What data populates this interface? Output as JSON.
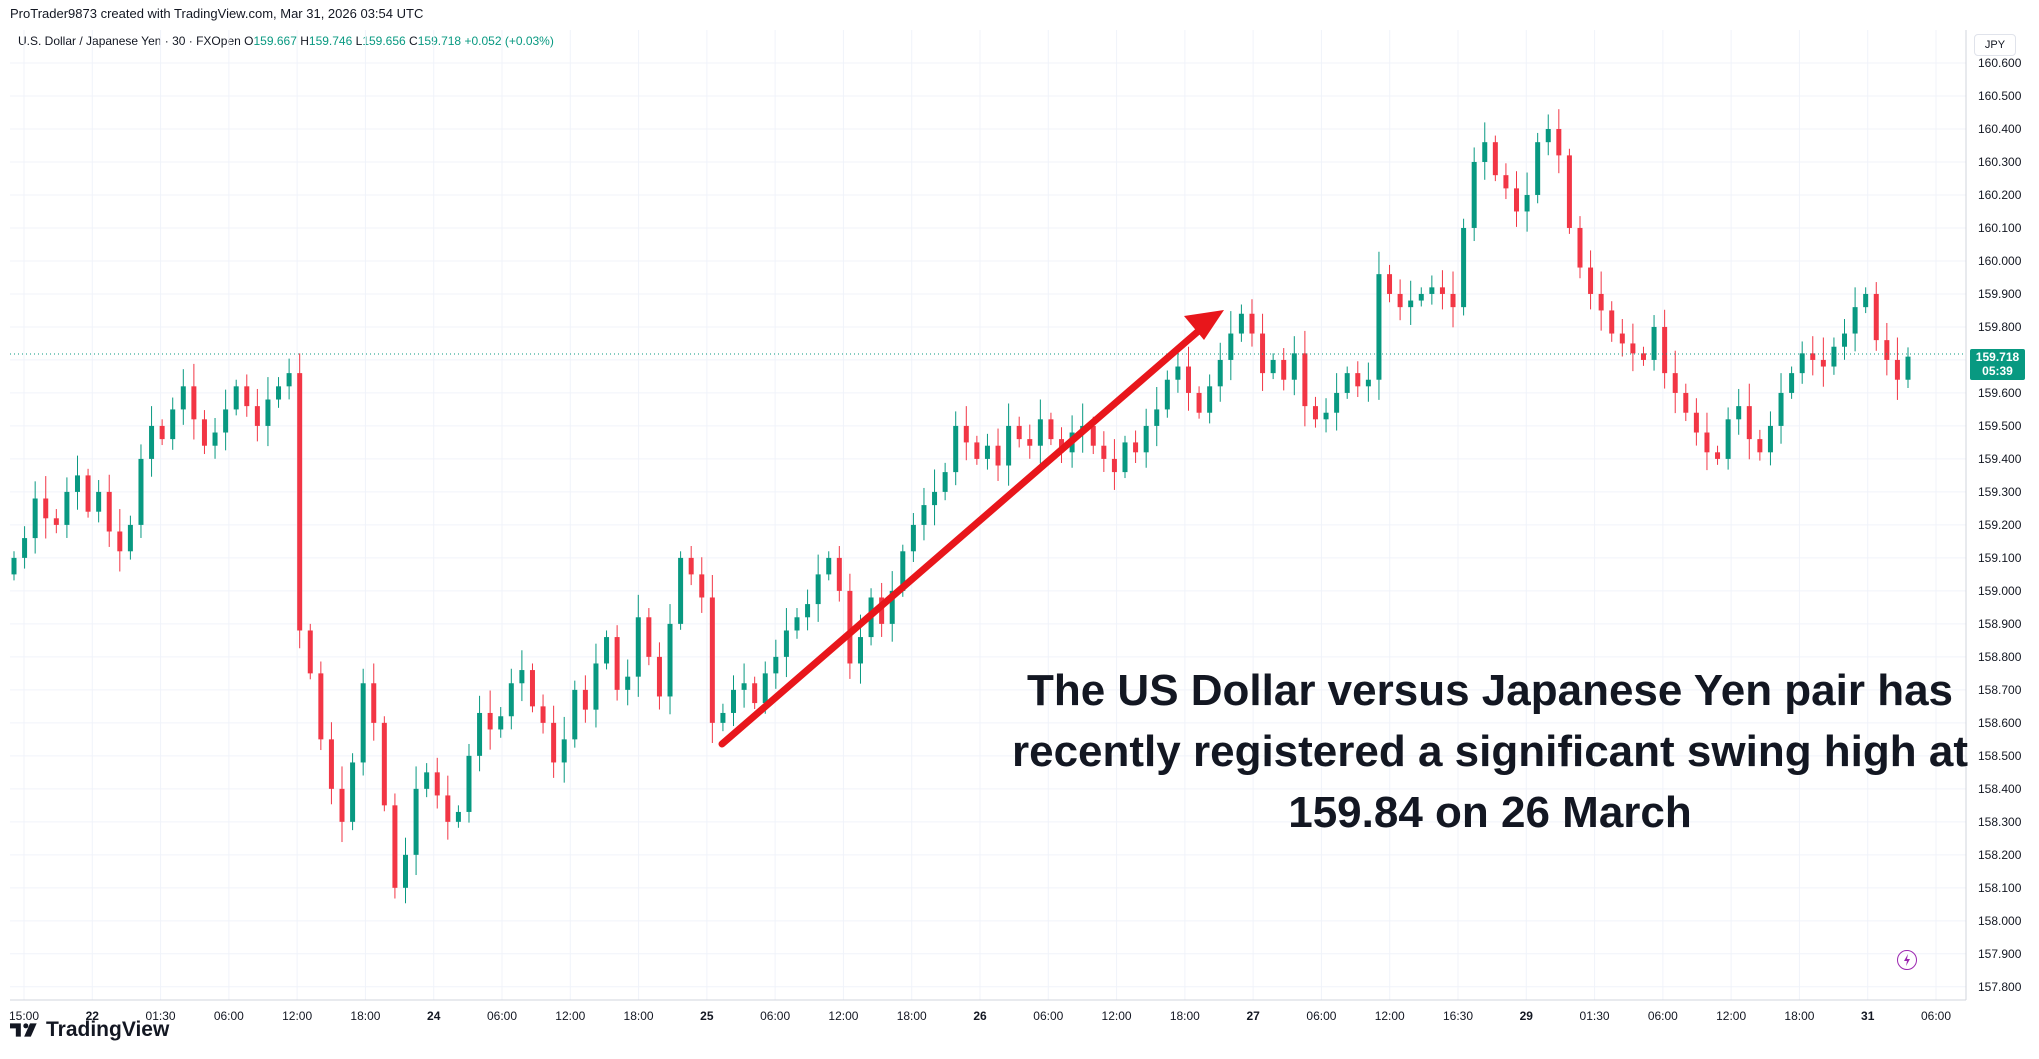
{
  "attribution": "ProTrader9873 created with TradingView.com, Mar 31, 2026 03:54 UTC",
  "legend": {
    "symbol": "U.S. Dollar / Japanese Yen · 30 · FXOpen",
    "o_label": "O",
    "o_value": "159.667",
    "h_label": "H",
    "h_value": "159.746",
    "l_label": "L",
    "l_value": "159.656",
    "c_label": "C",
    "c_value": "159.718",
    "change": "+0.052 (+0.03%)"
  },
  "currency": "JPY",
  "last_price": {
    "price": "159.718",
    "countdown": "05:39"
  },
  "annotation": {
    "line1": "The US Dollar versus Japanese Yen pair has",
    "line2": "recently registered a significant swing high at",
    "line3": "159.84 on 26 March"
  },
  "brand": "TradingView",
  "colors": {
    "up": "#089981",
    "down": "#f23645",
    "arrow": "#e8161b",
    "grid": "#f0f3fa"
  },
  "chart_data": {
    "type": "candlestick",
    "title": "U.S. Dollar / Japanese Yen · 30 · FXOpen",
    "ylabel": "JPY",
    "ylim": [
      157.76,
      160.7
    ],
    "y_ticks": [
      "160.600",
      "160.500",
      "160.400",
      "160.300",
      "160.200",
      "160.100",
      "160.000",
      "159.900",
      "159.800",
      "159.700",
      "159.600",
      "159.500",
      "159.400",
      "159.300",
      "159.200",
      "159.100",
      "159.000",
      "158.900",
      "158.800",
      "158.700",
      "158.600",
      "158.500",
      "158.400",
      "158.300",
      "158.200",
      "158.100",
      "158.000",
      "157.900",
      "157.800"
    ],
    "x_ticks": [
      {
        "label": "15:00",
        "bold": false
      },
      {
        "label": "22",
        "bold": true
      },
      {
        "label": "01:30",
        "bold": false
      },
      {
        "label": "06:00",
        "bold": false
      },
      {
        "label": "12:00",
        "bold": false
      },
      {
        "label": "18:00",
        "bold": false
      },
      {
        "label": "24",
        "bold": true
      },
      {
        "label": "06:00",
        "bold": false
      },
      {
        "label": "12:00",
        "bold": false
      },
      {
        "label": "18:00",
        "bold": false
      },
      {
        "label": "25",
        "bold": true
      },
      {
        "label": "06:00",
        "bold": false
      },
      {
        "label": "12:00",
        "bold": false
      },
      {
        "label": "18:00",
        "bold": false
      },
      {
        "label": "26",
        "bold": true
      },
      {
        "label": "06:00",
        "bold": false
      },
      {
        "label": "12:00",
        "bold": false
      },
      {
        "label": "18:00",
        "bold": false
      },
      {
        "label": "27",
        "bold": true
      },
      {
        "label": "06:00",
        "bold": false
      },
      {
        "label": "12:00",
        "bold": false
      },
      {
        "label": "16:30",
        "bold": false
      },
      {
        "label": "29",
        "bold": true
      },
      {
        "label": "01:30",
        "bold": false
      },
      {
        "label": "06:00",
        "bold": false
      },
      {
        "label": "12:00",
        "bold": false
      },
      {
        "label": "18:00",
        "bold": false
      },
      {
        "label": "31",
        "bold": true
      },
      {
        "label": "06:00",
        "bold": false
      }
    ],
    "last_price": 159.718,
    "swing_high": 159.84,
    "closes": [
      159.1,
      159.16,
      159.28,
      159.22,
      159.2,
      159.3,
      159.35,
      159.24,
      159.3,
      159.18,
      159.12,
      159.2,
      159.4,
      159.5,
      159.46,
      159.55,
      159.62,
      159.52,
      159.44,
      159.48,
      159.55,
      159.62,
      159.56,
      159.5,
      159.58,
      159.62,
      159.66,
      158.88,
      158.75,
      158.55,
      158.4,
      158.3,
      158.48,
      158.72,
      158.6,
      158.35,
      158.1,
      158.2,
      158.4,
      158.45,
      158.38,
      158.3,
      158.33,
      158.5,
      158.63,
      158.58,
      158.62,
      158.72,
      158.76,
      158.65,
      158.6,
      158.48,
      158.55,
      158.7,
      158.64,
      158.78,
      158.86,
      158.7,
      158.74,
      158.92,
      158.8,
      158.68,
      158.9,
      159.1,
      159.05,
      158.98,
      158.6,
      158.63,
      158.7,
      158.72,
      158.66,
      158.75,
      158.8,
      158.88,
      158.92,
      158.96,
      159.05,
      159.1,
      159.0,
      158.78,
      158.86,
      158.98,
      158.9,
      159.0,
      159.12,
      159.2,
      159.26,
      159.3,
      159.36,
      159.5,
      159.45,
      159.4,
      159.44,
      159.38,
      159.5,
      159.46,
      159.44,
      159.52,
      159.46,
      159.42,
      159.48,
      159.5,
      159.44,
      159.4,
      159.36,
      159.45,
      159.42,
      159.5,
      159.55,
      159.64,
      159.68,
      159.6,
      159.54,
      159.62,
      159.7,
      159.78,
      159.84,
      159.78,
      159.66,
      159.7,
      159.64,
      159.72,
      159.56,
      159.52,
      159.54,
      159.6,
      159.66,
      159.62,
      159.64,
      159.96,
      159.9,
      159.86,
      159.88,
      159.9,
      159.92,
      159.9,
      159.86,
      160.1,
      160.3,
      160.36,
      160.26,
      160.22,
      160.15,
      160.2,
      160.36,
      160.4,
      160.32,
      160.1,
      159.98,
      159.9,
      159.85,
      159.78,
      159.75,
      159.72,
      159.7,
      159.8,
      159.66,
      159.6,
      159.54,
      159.48,
      159.42,
      159.4,
      159.52,
      159.56,
      159.46,
      159.42,
      159.5,
      159.6,
      159.66,
      159.72,
      159.7,
      159.68,
      159.74,
      159.78,
      159.86,
      159.9,
      159.76,
      159.7,
      159.64,
      159.71
    ]
  }
}
